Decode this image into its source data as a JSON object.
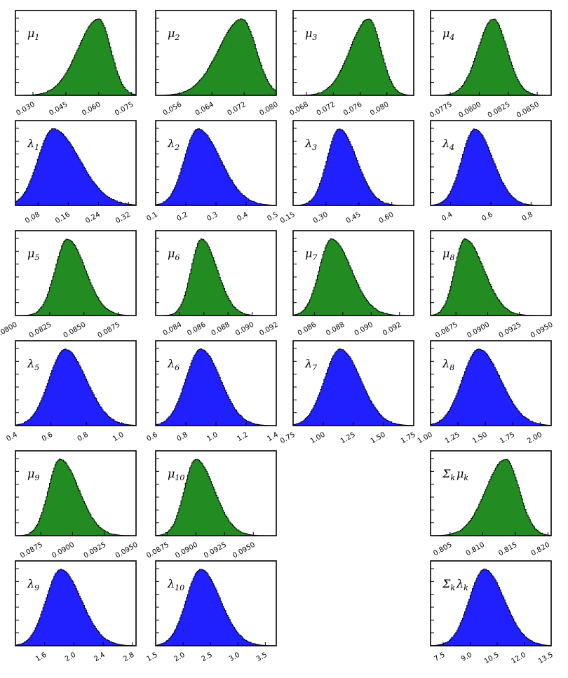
{
  "figure": {
    "colors": {
      "mu": "#228b22",
      "lambda": "#2020ff"
    }
  },
  "chart_data": [
    {
      "type": "area",
      "label": "μ",
      "sub": "1",
      "family": "mu",
      "xlim": [
        0.022,
        0.077
      ],
      "ticks": [
        0.03,
        0.045,
        0.06,
        0.075
      ],
      "tick_labels": [
        "0.030",
        "0.045",
        "0.060",
        "0.075"
      ],
      "mode": 0.06,
      "sd_left": 0.0095,
      "sd_right": 0.0055
    },
    {
      "type": "area",
      "label": "μ",
      "sub": "2",
      "family": "mu",
      "xlim": [
        0.05,
        0.08
      ],
      "ticks": [
        0.056,
        0.064,
        0.072,
        0.08
      ],
      "tick_labels": [
        "0.056",
        "0.064",
        "0.072",
        "0.080"
      ],
      "mode": 0.0715,
      "sd_left": 0.0058,
      "sd_right": 0.0035
    },
    {
      "type": "area",
      "label": "μ",
      "sub": "3",
      "family": "mu",
      "xlim": [
        0.066,
        0.084
      ],
      "ticks": [
        0.068,
        0.072,
        0.076,
        0.08
      ],
      "tick_labels": [
        "0.068",
        "0.072",
        "0.076",
        "0.080"
      ],
      "mode": 0.0773,
      "sd_left": 0.0028,
      "sd_right": 0.0018
    },
    {
      "type": "area",
      "label": "μ",
      "sub": "4",
      "family": "mu",
      "xlim": [
        0.0758,
        0.0862
      ],
      "ticks": [
        0.0775,
        0.08,
        0.0825,
        0.085
      ],
      "tick_labels": [
        "0.0775",
        "0.0800",
        "0.0825",
        "0.0850"
      ],
      "mode": 0.0812,
      "sd_left": 0.0013,
      "sd_right": 0.0012
    },
    {
      "type": "area",
      "label": "λ",
      "sub": "1",
      "family": "lambda",
      "xlim": [
        0.02,
        0.34
      ],
      "ticks": [
        0.08,
        0.16,
        0.24,
        0.32
      ],
      "tick_labels": [
        "0.08",
        "0.16",
        "0.24",
        "0.32"
      ],
      "mode": 0.12,
      "sd_left": 0.04,
      "sd_right": 0.07
    },
    {
      "type": "area",
      "label": "λ",
      "sub": "2",
      "family": "lambda",
      "xlim": [
        0.1,
        0.5
      ],
      "ticks": [
        0.1,
        0.2,
        0.3,
        0.4,
        0.5
      ],
      "tick_labels": [
        "0.1",
        "0.2",
        "0.3",
        "0.4",
        "0.5"
      ],
      "mode": 0.24,
      "sd_left": 0.045,
      "sd_right": 0.075
    },
    {
      "type": "area",
      "label": "λ",
      "sub": "3",
      "family": "lambda",
      "xlim": [
        0.15,
        0.7
      ],
      "ticks": [
        0.15,
        0.3,
        0.45,
        0.6
      ],
      "tick_labels": [
        "0.15",
        "0.30",
        "0.45",
        "0.60"
      ],
      "mode": 0.36,
      "sd_left": 0.055,
      "sd_right": 0.08
    },
    {
      "type": "area",
      "label": "λ",
      "sub": "4",
      "family": "lambda",
      "xlim": [
        0.3,
        0.9
      ],
      "ticks": [
        0.4,
        0.6,
        0.8
      ],
      "tick_labels": [
        "0.4",
        "0.6",
        "0.8"
      ],
      "mode": 0.52,
      "sd_left": 0.065,
      "sd_right": 0.09
    },
    {
      "type": "area",
      "label": "μ",
      "sub": "5",
      "family": "mu",
      "xlim": [
        0.08,
        0.0888
      ],
      "ticks": [
        0.08,
        0.0825,
        0.085,
        0.0875
      ],
      "tick_labels": [
        "0.0800",
        "0.0825",
        "0.0850",
        "0.0875"
      ],
      "mode": 0.0838,
      "sd_left": 0.0009,
      "sd_right": 0.0013
    },
    {
      "type": "area",
      "label": "μ",
      "sub": "6",
      "family": "mu",
      "xlim": [
        0.082,
        0.092
      ],
      "ticks": [
        0.084,
        0.086,
        0.088,
        0.09,
        0.092
      ],
      "tick_labels": [
        "0.084",
        "0.086",
        "0.088",
        "0.090",
        "0.092"
      ],
      "mode": 0.0858,
      "sd_left": 0.00085,
      "sd_right": 0.0013
    },
    {
      "type": "area",
      "label": "μ",
      "sub": "7",
      "family": "mu",
      "xlim": [
        0.0845,
        0.093
      ],
      "ticks": [
        0.086,
        0.088,
        0.09,
        0.092
      ],
      "tick_labels": [
        "0.086",
        "0.088",
        "0.090",
        "0.092"
      ],
      "mode": 0.0872,
      "sd_left": 0.00085,
      "sd_right": 0.0014
    },
    {
      "type": "area",
      "label": "μ",
      "sub": "8",
      "family": "mu",
      "xlim": [
        0.0855,
        0.095
      ],
      "ticks": [
        0.0875,
        0.09,
        0.0925,
        0.095
      ],
      "tick_labels": [
        "0.0875",
        "0.0900",
        "0.0925",
        "0.0950"
      ],
      "mode": 0.0882,
      "sd_left": 0.0008,
      "sd_right": 0.0015
    },
    {
      "type": "area",
      "label": "λ",
      "sub": "5",
      "family": "lambda",
      "xlim": [
        0.4,
        1.08
      ],
      "ticks": [
        0.4,
        0.6,
        0.8,
        1.0
      ],
      "tick_labels": [
        "0.4",
        "0.6",
        "0.8",
        "1.0"
      ],
      "mode": 0.68,
      "sd_left": 0.09,
      "sd_right": 0.12
    },
    {
      "type": "area",
      "label": "λ",
      "sub": "6",
      "family": "lambda",
      "xlim": [
        0.6,
        1.4
      ],
      "ticks": [
        0.6,
        0.8,
        1.0,
        1.2,
        1.4
      ],
      "tick_labels": [
        "0.6",
        "0.8",
        "1.0",
        "1.2",
        "1.4"
      ],
      "mode": 0.9,
      "sd_left": 0.1,
      "sd_right": 0.13
    },
    {
      "type": "area",
      "label": "λ",
      "sub": "7",
      "family": "lambda",
      "xlim": [
        0.75,
        1.75
      ],
      "ticks": [
        0.75,
        1.0,
        1.25,
        1.5,
        1.75
      ],
      "tick_labels": [
        "0.75",
        "1.00",
        "1.25",
        "1.50",
        "1.75"
      ],
      "mode": 1.14,
      "sd_left": 0.13,
      "sd_right": 0.17
    },
    {
      "type": "area",
      "label": "λ",
      "sub": "8",
      "family": "lambda",
      "xlim": [
        1.0,
        2.1
      ],
      "ticks": [
        1.0,
        1.25,
        1.5,
        1.75,
        2.0
      ],
      "tick_labels": [
        "1.00",
        "1.25",
        "1.50",
        "1.75",
        "2.00"
      ],
      "mode": 1.44,
      "sd_left": 0.15,
      "sd_right": 0.2
    },
    {
      "type": "area",
      "label": "μ",
      "sub": "9",
      "family": "mu",
      "xlim": [
        0.0855,
        0.095
      ],
      "ticks": [
        0.0875,
        0.09,
        0.0925,
        0.095
      ],
      "tick_labels": [
        "0.0875",
        "0.0900",
        "0.0925",
        "0.0950"
      ],
      "mode": 0.089,
      "sd_left": 0.0009,
      "sd_right": 0.0015
    },
    {
      "type": "area",
      "label": "μ",
      "sub": "10",
      "family": "mu",
      "xlim": [
        0.0865,
        0.097
      ],
      "ticks": [
        0.0875,
        0.09,
        0.0925,
        0.095
      ],
      "tick_labels": [
        "0.0875",
        "0.0900",
        "0.0925",
        "0.0950"
      ],
      "mode": 0.09,
      "sd_left": 0.001,
      "sd_right": 0.0016
    },
    {
      "type": "area",
      "label": "Σ",
      "sub": "k",
      "suffix": "μ",
      "suffix_sub": "k",
      "family": "mu",
      "xlim": [
        0.802,
        0.8205
      ],
      "ticks": [
        0.805,
        0.81,
        0.815,
        0.82
      ],
      "tick_labels": [
        "0.805",
        "0.810",
        "0.815",
        "0.820"
      ],
      "mode": 0.8135,
      "sd_left": 0.003,
      "sd_right": 0.0021
    },
    {
      "type": "area",
      "label": "λ",
      "sub": "9",
      "family": "lambda",
      "xlim": [
        1.2,
        2.85
      ],
      "ticks": [
        1.6,
        2.0,
        2.4,
        2.8
      ],
      "tick_labels": [
        "1.6",
        "2.0",
        "2.4",
        "2.8"
      ],
      "mode": 1.82,
      "sd_left": 0.2,
      "sd_right": 0.28
    },
    {
      "type": "area",
      "label": "λ",
      "sub": "10",
      "family": "lambda",
      "xlim": [
        1.5,
        3.7
      ],
      "ticks": [
        1.5,
        2.0,
        2.5,
        3.0,
        3.5
      ],
      "tick_labels": [
        "1.5",
        "2.0",
        "2.5",
        "3.0",
        "3.5"
      ],
      "mode": 2.32,
      "sd_left": 0.26,
      "sd_right": 0.36
    },
    {
      "type": "area",
      "label": "Σ",
      "sub": "k",
      "suffix": "λ",
      "suffix_sub": "k",
      "family": "lambda",
      "xlim": [
        6.8,
        13.5
      ],
      "ticks": [
        7.5,
        9.0,
        10.5,
        12.0,
        13.5
      ],
      "tick_labels": [
        "7.5",
        "9.0",
        "10.5",
        "12.0",
        "13.5"
      ],
      "mode": 9.8,
      "sd_left": 0.85,
      "sd_right": 1.1
    }
  ]
}
